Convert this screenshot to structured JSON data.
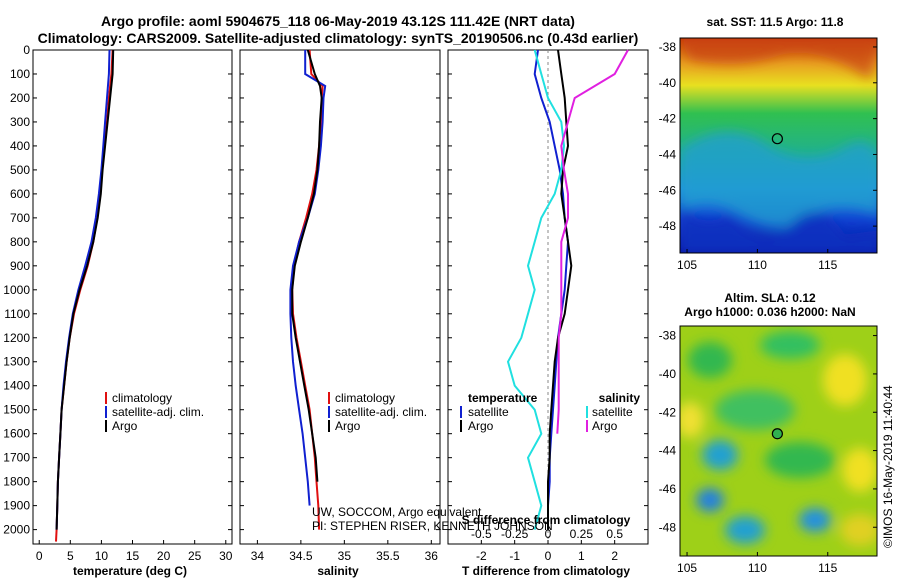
{
  "title": {
    "line1": "Argo profile: aoml 5904675_118 06-May-2019 43.12S 111.42E (NRT data)",
    "line2": "Climatology: CARS2009. Satellite-adjusted climatology: synTS_20190506.nc (0.43d earlier)"
  },
  "footer": {
    "credit1": "UW, SOCCOM, Argo equivalent",
    "credit2": "PI: STEPHEN RISER, KENNETH JOHNSON",
    "timestamp": "©IMOS 16-May-2019 11:40:44"
  },
  "colors": {
    "climatology": "#e01010",
    "satellite": "#1020d0",
    "argo": "#000000",
    "sal_satellite": "#20e0e0",
    "sal_argo": "#e020e0"
  },
  "chart_data": [
    {
      "type": "line",
      "name": "temperature-profile",
      "xlabel": "temperature (deg C)",
      "xlim": [
        -1,
        31
      ],
      "ylim": [
        2060,
        0
      ],
      "xticks": [
        0,
        5,
        10,
        15,
        20,
        25,
        30
      ],
      "xtick_labels": [
        "0",
        "5",
        "10",
        "15",
        "20",
        "25",
        "30"
      ],
      "yticks": [
        0,
        100,
        200,
        300,
        400,
        500,
        600,
        700,
        800,
        900,
        1000,
        1100,
        1200,
        1300,
        1400,
        1500,
        1600,
        1700,
        1800,
        1900,
        2000
      ],
      "ytick_labels": [
        "0",
        "100",
        "200",
        "300",
        "400",
        "500",
        "600",
        "700",
        "800",
        "900",
        "1000",
        "1100",
        "1200",
        "1300",
        "1400",
        "1500",
        "1600",
        "1700",
        "1800",
        "1900",
        "2000"
      ],
      "legend": [
        "climatology",
        "satellite-adj. clim.",
        "Argo"
      ],
      "series": [
        {
          "name": "climatology",
          "color": "#e01010",
          "x": [
            11.8,
            11.6,
            11.2,
            10.9,
            10.5,
            10.1,
            9.8,
            9.3,
            8.7,
            7.8,
            6.6,
            5.6,
            4.9,
            4.4,
            4.0,
            3.6,
            3.4,
            3.2,
            3.0,
            2.9,
            2.8,
            2.7
          ],
          "y": [
            0,
            100,
            200,
            300,
            400,
            500,
            600,
            700,
            800,
            900,
            1000,
            1100,
            1200,
            1300,
            1400,
            1500,
            1600,
            1700,
            1800,
            1900,
            2000,
            2050
          ]
        },
        {
          "name": "satellite-adj. clim.",
          "color": "#1020d0",
          "x": [
            11.3,
            11.2,
            10.9,
            10.6,
            10.3,
            10.0,
            9.6,
            9.1,
            8.4,
            7.4,
            6.3,
            5.4,
            4.8,
            4.3,
            3.9,
            3.6,
            3.4,
            3.2,
            3.0,
            2.9,
            2.8
          ],
          "y": [
            0,
            100,
            200,
            300,
            400,
            500,
            600,
            700,
            800,
            900,
            1000,
            1100,
            1200,
            1300,
            1400,
            1500,
            1600,
            1700,
            1800,
            1900,
            2000
          ]
        },
        {
          "name": "Argo",
          "color": "#000000",
          "x": [
            11.9,
            11.8,
            11.4,
            11.0,
            10.6,
            10.2,
            9.9,
            9.4,
            8.7,
            7.7,
            6.5,
            5.5,
            4.9,
            4.4,
            4.0,
            3.6,
            3.4,
            3.2,
            3.0,
            2.9,
            2.8
          ],
          "y": [
            0,
            100,
            200,
            300,
            400,
            500,
            600,
            700,
            800,
            900,
            1000,
            1100,
            1200,
            1300,
            1400,
            1500,
            1600,
            1700,
            1800,
            1900,
            2000
          ]
        }
      ]
    },
    {
      "type": "line",
      "name": "salinity-profile",
      "xlabel": "salinity",
      "xlim": [
        33.8,
        36.1
      ],
      "ylim": [
        2060,
        0
      ],
      "xticks": [
        34,
        34.5,
        35,
        35.5,
        36
      ],
      "xtick_labels": [
        "34",
        "34.5",
        "35",
        "35.5",
        "36"
      ],
      "legend": [
        "climatology",
        "satellite-adj. clim.",
        "Argo"
      ],
      "series": [
        {
          "name": "climatology",
          "color": "#e01010",
          "x": [
            34.6,
            34.62,
            34.75,
            34.74,
            34.73,
            34.71,
            34.68,
            34.63,
            34.56,
            34.48,
            34.42,
            34.4,
            34.41,
            34.45,
            34.5,
            34.55,
            34.6,
            34.63,
            34.66,
            34.68,
            34.7,
            34.71
          ],
          "y": [
            0,
            100,
            150,
            200,
            300,
            400,
            500,
            600,
            700,
            800,
            900,
            1000,
            1100,
            1200,
            1300,
            1400,
            1500,
            1600,
            1700,
            1800,
            1900,
            2000
          ]
        },
        {
          "name": "satellite-adj. clim.",
          "color": "#1020d0",
          "x": [
            34.55,
            34.55,
            34.78,
            34.76,
            34.75,
            34.73,
            34.7,
            34.66,
            34.58,
            34.48,
            34.41,
            34.38,
            34.38,
            34.39,
            34.41,
            34.44,
            34.48,
            34.52,
            34.55,
            34.58,
            34.6
          ],
          "y": [
            0,
            100,
            150,
            200,
            300,
            400,
            500,
            600,
            700,
            800,
            900,
            1000,
            1100,
            1200,
            1300,
            1400,
            1500,
            1600,
            1700,
            1800,
            1900
          ]
        },
        {
          "name": "Argo",
          "color": "#000000",
          "x": [
            34.58,
            34.66,
            34.72,
            34.74,
            34.72,
            34.71,
            34.69,
            34.65,
            34.58,
            34.5,
            34.43,
            34.4,
            34.4,
            34.44,
            34.49,
            34.54,
            34.59,
            34.63,
            34.67,
            34.69
          ],
          "y": [
            0,
            100,
            150,
            200,
            300,
            400,
            500,
            600,
            700,
            800,
            900,
            1000,
            1100,
            1200,
            1300,
            1400,
            1500,
            1600,
            1700,
            1800
          ]
        }
      ]
    },
    {
      "type": "line",
      "name": "difference-profile",
      "xlabel": "T difference from climatology",
      "xlabel_top": "S difference from climatology",
      "xlim": [
        -3,
        3
      ],
      "ylim": [
        2060,
        0
      ],
      "xticks": [
        -2,
        -1,
        0,
        1,
        2
      ],
      "xtick_labels": [
        "-2",
        "-1",
        "0",
        "1",
        "2"
      ],
      "xticks_top": [
        -0.5,
        -0.25,
        0,
        0.25,
        0.5
      ],
      "xtick_labels_top": [
        "-0.5",
        "-0.25",
        "0",
        "0.25",
        "0.5"
      ],
      "legend_temperature": [
        "temperature",
        "satellite",
        "Argo"
      ],
      "legend_salinity": [
        "salinity",
        "satellite",
        "Argo"
      ],
      "series": [
        {
          "name": "T satellite",
          "color": "#1020d0",
          "x": [
            -0.3,
            -0.4,
            -0.2,
            0.05,
            0.2,
            0.35,
            0.45,
            0.5,
            0.6,
            0.55,
            0.5,
            0.4,
            0.3,
            0.25,
            0.2,
            0.15,
            0.1,
            0.05,
            0.05,
            0.0,
            0.0
          ],
          "y": [
            0,
            100,
            200,
            300,
            400,
            500,
            600,
            700,
            800,
            900,
            1000,
            1100,
            1200,
            1300,
            1400,
            1500,
            1600,
            1700,
            1800,
            1900,
            2000
          ]
        },
        {
          "name": "T Argo",
          "color": "#000000",
          "x": [
            0.3,
            0.4,
            0.5,
            0.55,
            0.6,
            0.45,
            0.4,
            0.5,
            0.6,
            0.7,
            0.6,
            0.5,
            0.3,
            0.2,
            0.15,
            0.1,
            0.05,
            0.05,
            0.0,
            0.0,
            0.0
          ],
          "y": [
            0,
            100,
            200,
            300,
            400,
            500,
            600,
            700,
            800,
            900,
            1000,
            1100,
            1200,
            1300,
            1400,
            1500,
            1600,
            1700,
            1800,
            1900,
            2000
          ]
        },
        {
          "name": "S satellite",
          "color": "#20e0e0",
          "x": [
            -0.1,
            -0.05,
            0.0,
            0.1,
            0.12,
            0.1,
            0.05,
            -0.05,
            -0.1,
            -0.15,
            -0.1,
            -0.15,
            -0.2,
            -0.3,
            -0.25,
            -0.1,
            -0.05,
            -0.15,
            -0.1,
            -0.05,
            -0.1
          ],
          "y": [
            0,
            100,
            200,
            300,
            400,
            500,
            600,
            700,
            800,
            900,
            1000,
            1100,
            1200,
            1300,
            1400,
            1500,
            1600,
            1700,
            1800,
            1900,
            2000
          ]
        },
        {
          "name": "S Argo",
          "color": "#e020e0",
          "x": [
            0.6,
            0.5,
            0.2,
            0.15,
            0.1,
            0.12,
            0.15,
            0.15,
            0.1,
            0.1,
            0.1,
            0.1,
            0.08,
            0.08,
            0.08,
            0.08,
            0.07
          ],
          "y": [
            0,
            100,
            200,
            300,
            400,
            500,
            600,
            700,
            800,
            900,
            1000,
            1100,
            1200,
            1300,
            1400,
            1500,
            1600
          ]
        }
      ]
    },
    {
      "type": "heatmap",
      "name": "sst-map",
      "title": "sat. SST: 11.5 Argo: 11.8",
      "xlim": [
        104.5,
        118.5
      ],
      "ylim": [
        -49.5,
        -37.5
      ],
      "xticks": [
        105,
        110,
        115
      ],
      "xtick_labels": [
        "105",
        "110",
        "115"
      ],
      "yticks": [
        -38,
        -40,
        -42,
        -44,
        -46,
        -48
      ],
      "ytick_labels": [
        "-38",
        "-40",
        "-42",
        "-44",
        "-46",
        "-48"
      ],
      "marker": {
        "lon": 111.42,
        "lat": -43.12
      }
    },
    {
      "type": "heatmap",
      "name": "sla-map",
      "title": "Altim. SLA: 0.12",
      "subtitle": "Argo h1000: 0.036 h2000: NaN",
      "xlim": [
        104.5,
        118.5
      ],
      "ylim": [
        -49.5,
        -37.5
      ],
      "xticks": [
        105,
        110,
        115
      ],
      "xtick_labels": [
        "105",
        "110",
        "115"
      ],
      "yticks": [
        -38,
        -40,
        -42,
        -44,
        -46,
        -48
      ],
      "ytick_labels": [
        "-38",
        "-40",
        "-42",
        "-44",
        "-46",
        "-48"
      ],
      "marker": {
        "lon": 111.42,
        "lat": -43.12
      }
    }
  ]
}
